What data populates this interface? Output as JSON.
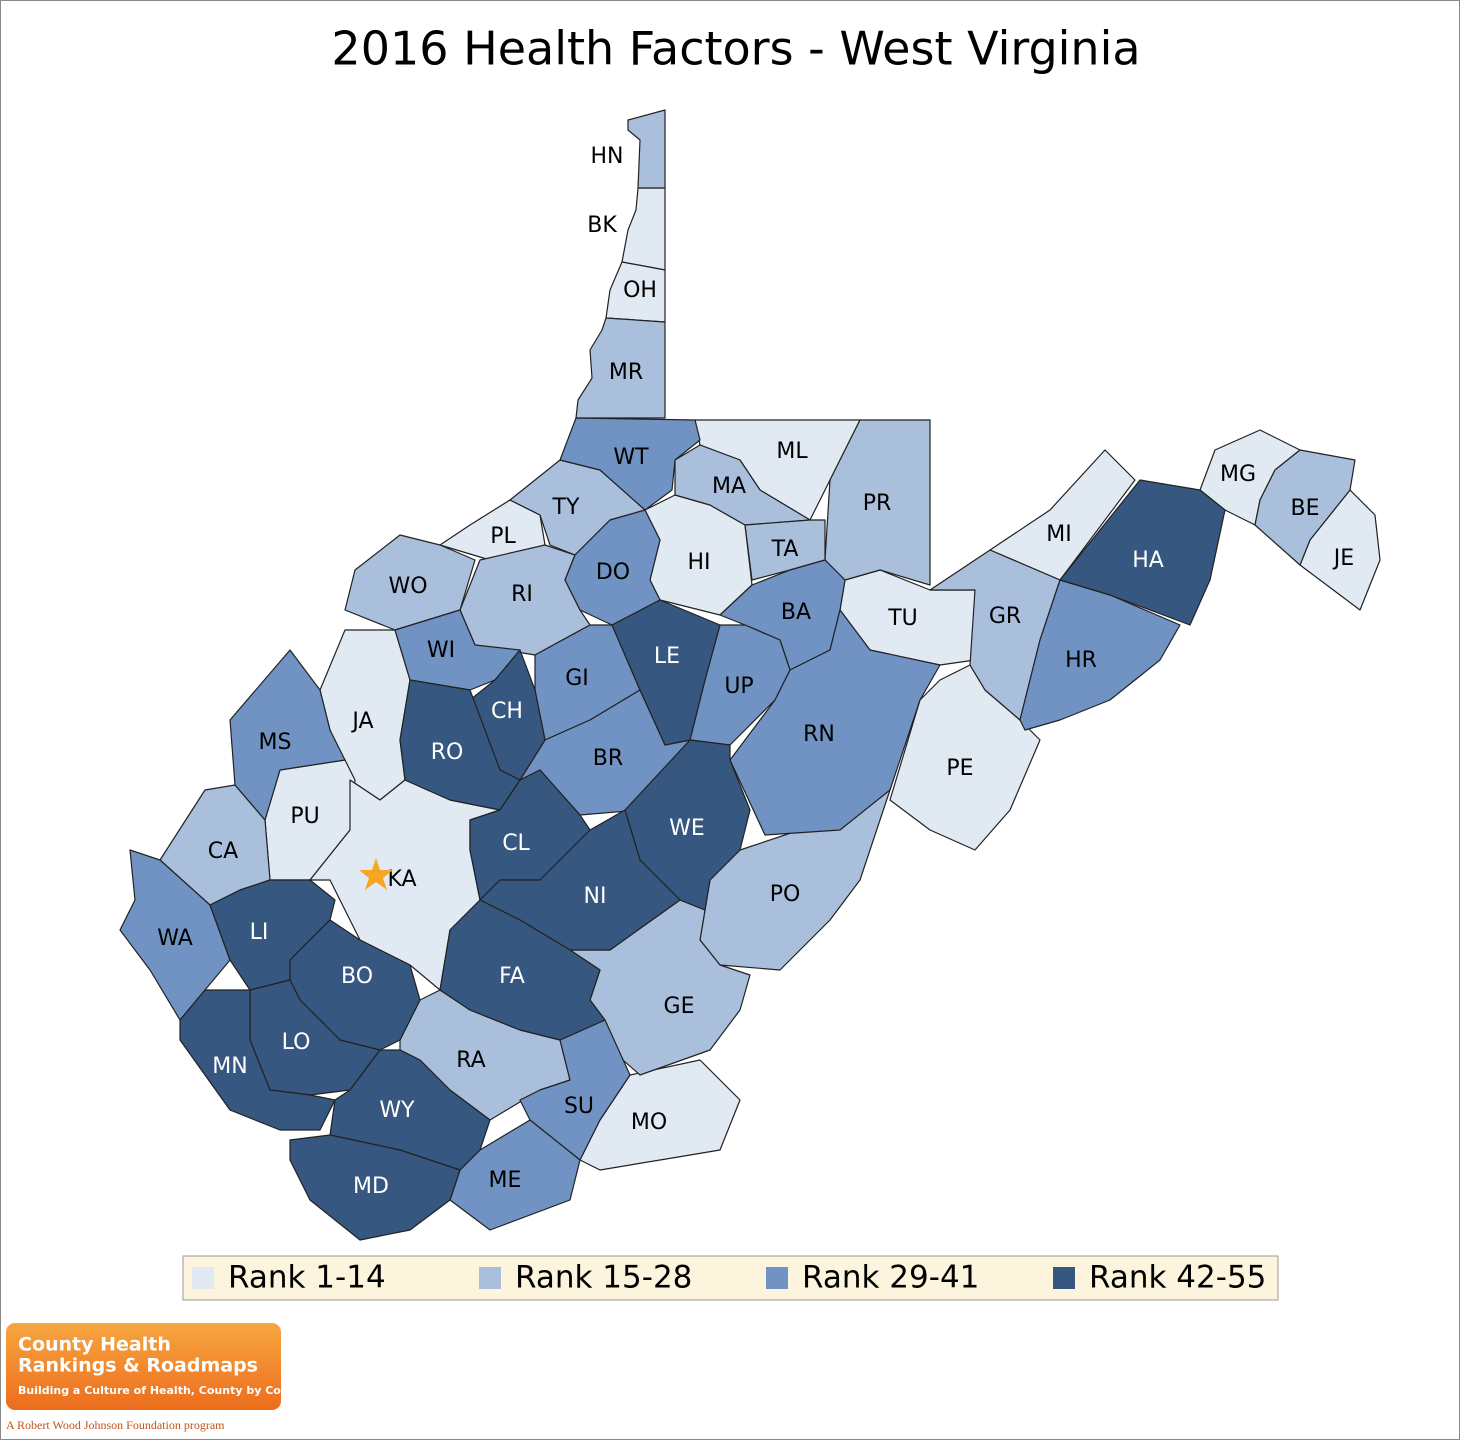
{
  "title": "2016 Health Factors - West Virginia",
  "legend": [
    {
      "label": "Rank 1-14",
      "color": "#e1e9f3",
      "counties": [
        "BK",
        "OH",
        "ML",
        "PL",
        "HI",
        "TU",
        "MI",
        "MG",
        "JE",
        "JA",
        "PE",
        "PU",
        "KA",
        "MO"
      ]
    },
    {
      "label": "Rank 15-28",
      "color": "#a9bfdb",
      "counties": [
        "HN",
        "MR",
        "MA",
        "PR",
        "TY",
        "TA",
        "RI",
        "WO",
        "GR",
        "BE",
        "CA",
        "PO",
        "GE",
        "RA"
      ]
    },
    {
      "label": "Rank 29-41",
      "color": "#7093c3",
      "counties": [
        "WT",
        "DO",
        "BA",
        "HR",
        "WI",
        "GI",
        "UP",
        "MS",
        "RN",
        "BR",
        "WA",
        "SU",
        "ME"
      ]
    },
    {
      "label": "Rank 42-55",
      "color": "#36577f",
      "counties": [
        "HA",
        "LE",
        "CH",
        "RO",
        "WE",
        "CL",
        "NI",
        "LI",
        "BO",
        "FA",
        "LO",
        "MN",
        "WY",
        "MD"
      ]
    }
  ],
  "logo": {
    "line1": "County Health",
    "line2": "Rankings & Roadmaps",
    "tagline": "Building a Culture of Health, County by County",
    "program": "A Robert Wood Johnson Foundation program"
  }
}
